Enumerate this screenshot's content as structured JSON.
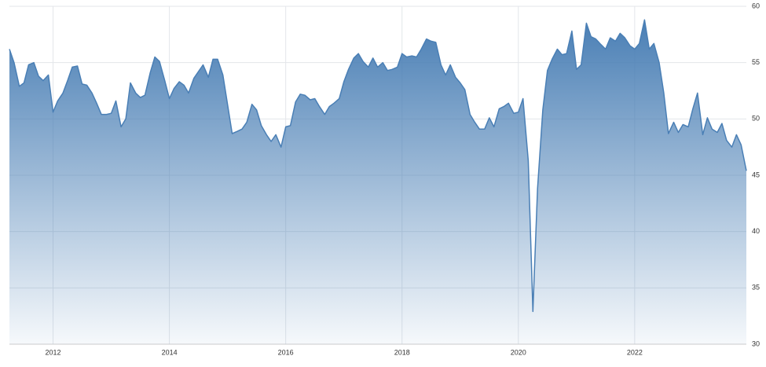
{
  "chart_data": {
    "type": "area",
    "x": [
      2011.25,
      2011.33,
      2011.42,
      2011.5,
      2011.58,
      2011.67,
      2011.75,
      2011.83,
      2011.92,
      2012,
      2012.08,
      2012.17,
      2012.25,
      2012.33,
      2012.42,
      2012.5,
      2012.58,
      2012.67,
      2012.75,
      2012.83,
      2012.92,
      2013,
      2013.08,
      2013.17,
      2013.25,
      2013.33,
      2013.42,
      2013.5,
      2013.58,
      2013.67,
      2013.75,
      2013.83,
      2013.92,
      2014,
      2014.08,
      2014.17,
      2014.25,
      2014.33,
      2014.42,
      2014.5,
      2014.58,
      2014.67,
      2014.75,
      2014.83,
      2014.92,
      2015,
      2015.08,
      2015.17,
      2015.25,
      2015.33,
      2015.42,
      2015.5,
      2015.58,
      2015.67,
      2015.75,
      2015.83,
      2015.92,
      2016,
      2016.08,
      2016.17,
      2016.25,
      2016.33,
      2016.42,
      2016.5,
      2016.58,
      2016.67,
      2016.75,
      2016.83,
      2016.92,
      2017,
      2017.08,
      2017.17,
      2017.25,
      2017.33,
      2017.42,
      2017.5,
      2017.58,
      2017.67,
      2017.75,
      2017.83,
      2017.92,
      2018,
      2018.08,
      2018.17,
      2018.25,
      2018.33,
      2018.42,
      2018.5,
      2018.58,
      2018.67,
      2018.75,
      2018.83,
      2018.92,
      2019,
      2019.08,
      2019.17,
      2019.25,
      2019.33,
      2019.42,
      2019.5,
      2019.58,
      2019.67,
      2019.75,
      2019.83,
      2019.92,
      2020,
      2020.08,
      2020.17,
      2020.25,
      2020.33,
      2020.42,
      2020.5,
      2020.58,
      2020.67,
      2020.75,
      2020.83,
      2020.92,
      2021,
      2021.08,
      2021.17,
      2021.25,
      2021.33,
      2021.42,
      2021.5,
      2021.58,
      2021.67,
      2021.75,
      2021.83,
      2021.92,
      2022,
      2022.08,
      2022.17,
      2022.25,
      2022.33,
      2022.42,
      2022.5,
      2022.58,
      2022.67,
      2022.75,
      2022.83,
      2022.92,
      2023,
      2023.08,
      2023.17,
      2023.25,
      2023.33,
      2023.42,
      2023.5,
      2023.58,
      2023.67,
      2023.75,
      2023.83,
      2023.92
    ],
    "series": [
      {
        "color": "#4a7fb5",
        "values": [
          56.2,
          55.0,
          52.9,
          53.2,
          54.8,
          55.0,
          53.8,
          53.4,
          53.9,
          50.6,
          51.6,
          52.3,
          53.4,
          54.6,
          54.7,
          53.1,
          53.0,
          52.3,
          51.4,
          50.4,
          50.4,
          50.5,
          51.6,
          49.3,
          50.0,
          53.2,
          52.3,
          51.9,
          52.1,
          54.1,
          55.5,
          55.1,
          53.4,
          51.8,
          52.7,
          53.3,
          53.0,
          52.3,
          53.6,
          54.2,
          54.8,
          53.7,
          55.3,
          55.3,
          53.9,
          51.3,
          48.7,
          48.9,
          49.1,
          49.7,
          51.3,
          50.8,
          49.4,
          48.6,
          48.0,
          48.6,
          47.5,
          49.3,
          49.4,
          51.5,
          52.2,
          52.1,
          51.7,
          51.8,
          51.1,
          50.4,
          51.1,
          51.4,
          51.8,
          53.3,
          54.4,
          55.4,
          55.8,
          55.1,
          54.6,
          55.4,
          54.6,
          55.0,
          54.3,
          54.4,
          54.6,
          55.8,
          55.5,
          55.6,
          55.5,
          56.2,
          57.1,
          56.9,
          56.8,
          54.8,
          53.9,
          54.8,
          53.7,
          53.2,
          52.6,
          50.4,
          49.7,
          49.1,
          49.1,
          50.1,
          49.3,
          50.9,
          51.1,
          51.4,
          50.5,
          50.6,
          51.8,
          46.3,
          32.9,
          43.8,
          50.8,
          54.3,
          55.3,
          56.2,
          55.7,
          55.8,
          57.8,
          54.4,
          54.8,
          58.5,
          57.3,
          57.1,
          56.6,
          56.2,
          57.2,
          56.9,
          57.6,
          57.2,
          56.5,
          56.2,
          56.7,
          58.8,
          56.2,
          56.7,
          55.0,
          52.3,
          48.7,
          49.7,
          48.8,
          49.5,
          49.3,
          50.9,
          52.3,
          48.6,
          50.1,
          49.1,
          48.8,
          49.6,
          48.1,
          47.5,
          48.6,
          47.7,
          45.4
        ]
      }
    ],
    "xlim": [
      2011.25,
      2023.92
    ],
    "xticks": [
      2012,
      2014,
      2016,
      2018,
      2020,
      2022
    ],
    "ylim": [
      30,
      60
    ],
    "yticks": [
      30,
      35,
      40,
      45,
      50,
      55,
      60
    ],
    "grid": true
  }
}
